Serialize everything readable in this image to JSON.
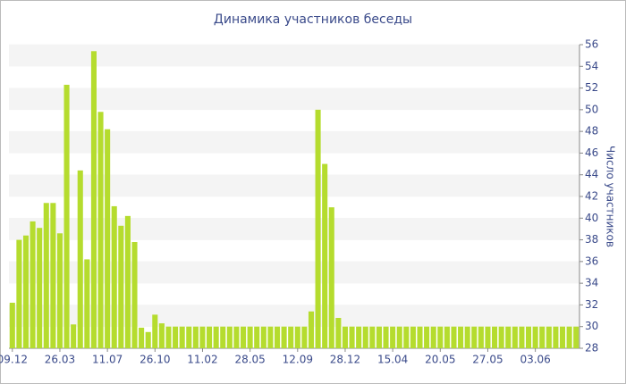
{
  "chart_data": {
    "type": "bar",
    "title": "Динамика участников беседы",
    "y_label": "Число участников",
    "categories": [
      "09.12",
      null,
      null,
      null,
      null,
      null,
      null,
      "26.03",
      null,
      null,
      null,
      null,
      null,
      null,
      "11.07",
      null,
      null,
      null,
      null,
      null,
      null,
      "26.10",
      null,
      null,
      null,
      null,
      null,
      null,
      "11.02",
      null,
      null,
      null,
      null,
      null,
      null,
      "28.05",
      null,
      null,
      null,
      null,
      null,
      null,
      "12.09",
      null,
      null,
      null,
      null,
      null,
      null,
      "28.12",
      null,
      null,
      null,
      null,
      null,
      null,
      "15.04",
      null,
      null,
      null,
      null,
      null,
      null,
      "20.05",
      null,
      null,
      null,
      null,
      null,
      null,
      "27.05",
      null,
      null,
      null,
      null,
      null,
      null,
      "03.06",
      null,
      null,
      null,
      null,
      null,
      null
    ],
    "values": [
      32.2,
      38,
      38.4,
      39.7,
      39.1,
      41.4,
      41.4,
      38.6,
      52.3,
      30.2,
      44.4,
      36.2,
      55.4,
      49.8,
      48.2,
      41.1,
      39.3,
      40.2,
      37.8,
      29.9,
      29.5,
      31.1,
      30.3,
      30,
      30,
      30,
      30,
      30,
      30,
      30,
      30,
      30,
      30,
      30,
      30,
      30,
      30,
      30,
      30,
      30,
      30,
      30,
      30,
      30,
      31.4,
      50,
      45,
      41,
      30.8,
      30,
      30,
      30,
      30,
      30,
      30,
      30,
      30,
      30,
      30,
      30,
      30,
      30,
      30,
      30,
      30,
      30,
      30,
      30,
      30,
      30,
      30,
      30,
      30,
      30,
      30,
      30,
      30,
      30,
      30,
      30,
      30,
      30,
      30,
      30
    ],
    "color": "#b5dc2e",
    "ylim": [
      28,
      56
    ],
    "yticks": [
      28,
      30,
      32,
      34,
      36,
      38,
      40,
      42,
      44,
      46,
      48,
      50,
      52,
      54,
      56
    ],
    "grid": true
  }
}
